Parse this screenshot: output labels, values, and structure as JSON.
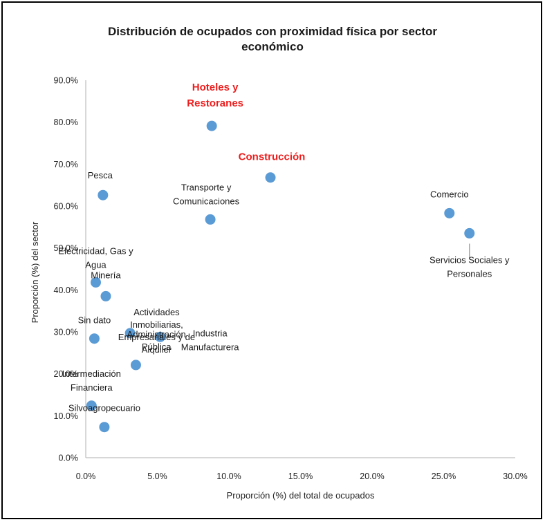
{
  "chart_data": {
    "type": "scatter",
    "title": [
      "Distribución de ocupados con proximidad física por sector",
      "económico"
    ],
    "xlabel": "Proporción (%) del total de ocupados",
    "ylabel": "Proporción (%) del sector",
    "xlim": [
      0,
      30
    ],
    "ylim": [
      0,
      90
    ],
    "xticks": [
      "0.0%",
      "5.0%",
      "10.0%",
      "15.0%",
      "20.0%",
      "25.0%",
      "30.0%"
    ],
    "yticks": [
      "0.0%",
      "10.0%",
      "20.0%",
      "30.0%",
      "40.0%",
      "50.0%",
      "60.0%",
      "70.0%",
      "80.0%",
      "90.0%"
    ],
    "grid": false,
    "marker_color": "#5b9bd5",
    "highlight_color": "#ee1c1c",
    "points": [
      {
        "label": [
          "Hoteles y",
          "Restoranes"
        ],
        "x": 8.8,
        "y": 79.1,
        "highlight": true
      },
      {
        "label": [
          "Construcción"
        ],
        "x": 12.9,
        "y": 66.8,
        "highlight": true
      },
      {
        "label": [
          "Pesca"
        ],
        "x": 1.2,
        "y": 62.6
      },
      {
        "label": [
          "Transporte y",
          "Comunicaciones"
        ],
        "x": 8.7,
        "y": 56.8
      },
      {
        "label": [
          "Comercio"
        ],
        "x": 25.4,
        "y": 58.3
      },
      {
        "label": [
          "Servicios Sociales y",
          "Personales"
        ],
        "x": 26.8,
        "y": 53.5
      },
      {
        "label": [
          "Electricidad, Gas y",
          "Agua"
        ],
        "x": 0.7,
        "y": 41.8
      },
      {
        "label": [
          "Minería"
        ],
        "x": 1.4,
        "y": 38.5
      },
      {
        "label": [
          "Administración",
          "Pública"
        ],
        "x": 3.1,
        "y": 29.7
      },
      {
        "label": [
          "Actividades",
          "Inmobiliarias,",
          "Empresariales y de",
          "Alquiler"
        ],
        "x": 3.5,
        "y": 22.1
      },
      {
        "label": [
          "Industria",
          "Manufacturera"
        ],
        "x": 5.2,
        "y": 28.8
      },
      {
        "label": [
          "Sin dato"
        ],
        "x": 0.6,
        "y": 28.4
      },
      {
        "label": [
          "Intermediación",
          "Financiera"
        ],
        "x": 0.4,
        "y": 12.4
      },
      {
        "label": [
          "Silvoagropecuario"
        ],
        "x": 1.3,
        "y": 7.3
      }
    ]
  }
}
